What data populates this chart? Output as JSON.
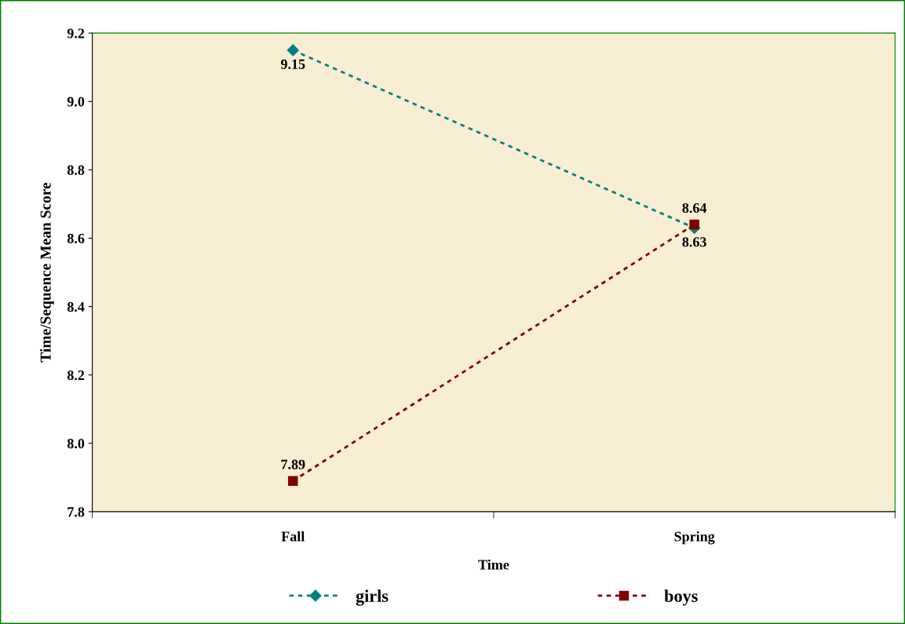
{
  "chart_data": {
    "type": "line",
    "xlabel": "Time",
    "ylabel": "Time/Sequence Mean Score",
    "categories": [
      "Fall",
      "Spring"
    ],
    "series": [
      {
        "name": "girls",
        "color": "#008080",
        "values": [
          9.15,
          8.63
        ],
        "marker": "diamond"
      },
      {
        "name": "boys",
        "color": "#800000",
        "values": [
          7.89,
          8.64
        ],
        "marker": "square"
      }
    ],
    "ylim": [
      7.8,
      9.2
    ],
    "yticks": [
      7.8,
      {
        "value": 8,
        "label": "8.0"
      },
      8.2,
      8.4,
      8.6,
      8.8,
      {
        "value": 9,
        "label": "9.0"
      },
      9.2
    ],
    "data_labels": true,
    "line_style": "dashed",
    "legend": "bottom",
    "grid": false
  }
}
